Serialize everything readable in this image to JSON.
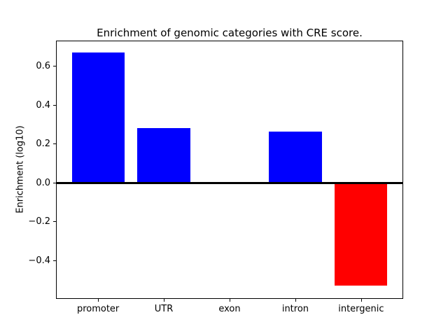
{
  "chart_data": {
    "type": "bar",
    "title": "Enrichment of genomic categories with CRE score.",
    "ylabel": "Enrichment (log10)",
    "xlabel": "",
    "categories": [
      "promoter",
      "UTR",
      "exon",
      "intron",
      "intergenic"
    ],
    "values": [
      0.67,
      0.28,
      0.0,
      0.26,
      -0.53
    ],
    "bar_colors": [
      "#0000ff",
      "#0000ff",
      "#0000ff",
      "#0000ff",
      "#ff0000"
    ],
    "positive_color": "#0000ff",
    "negative_color": "#ff0000",
    "bar_width": 0.8,
    "xlim": [
      -0.64,
      4.64
    ],
    "ylim": [
      -0.6,
      0.73
    ],
    "yticks": [
      {
        "value": 0.6,
        "label": "0.6"
      },
      {
        "value": 0.4,
        "label": "0.4"
      },
      {
        "value": 0.2,
        "label": "0.2"
      },
      {
        "value": 0.0,
        "label": "0.0"
      },
      {
        "value": -0.2,
        "label": "−0.2"
      },
      {
        "value": -0.4,
        "label": "−0.4"
      }
    ],
    "zero_line": {
      "value": 0.0,
      "color": "#000000"
    },
    "grid": false,
    "legend_position": "none",
    "background": "#ffffff"
  }
}
